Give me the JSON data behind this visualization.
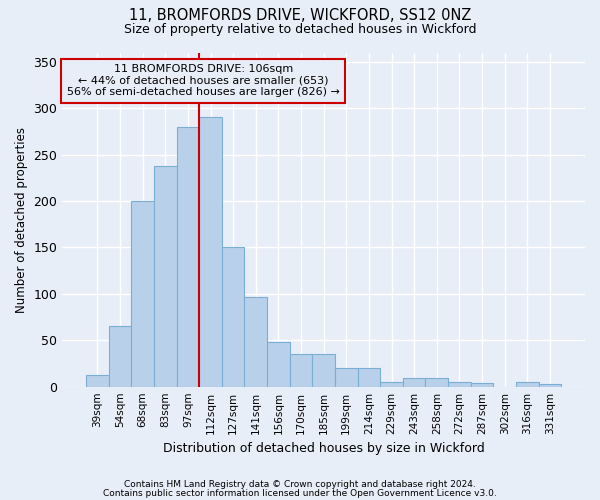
{
  "title1": "11, BROMFORDS DRIVE, WICKFORD, SS12 0NZ",
  "title2": "Size of property relative to detached houses in Wickford",
  "xlabel": "Distribution of detached houses by size in Wickford",
  "ylabel": "Number of detached properties",
  "categories": [
    "39sqm",
    "54sqm",
    "68sqm",
    "83sqm",
    "97sqm",
    "112sqm",
    "127sqm",
    "141sqm",
    "156sqm",
    "170sqm",
    "185sqm",
    "199sqm",
    "214sqm",
    "229sqm",
    "243sqm",
    "258sqm",
    "272sqm",
    "287sqm",
    "302sqm",
    "316sqm",
    "331sqm"
  ],
  "values": [
    13,
    65,
    200,
    238,
    280,
    291,
    150,
    97,
    48,
    35,
    35,
    20,
    20,
    5,
    9,
    9,
    5,
    4,
    0,
    5,
    3
  ],
  "bar_color": "#b8d0ea",
  "bar_edge_color": "#7aaed4",
  "property_label": "11 BROMFORDS DRIVE: 106sqm",
  "annotation_line1": "← 44% of detached houses are smaller (653)",
  "annotation_line2": "56% of semi-detached houses are larger (826) →",
  "vline_color": "#cc0000",
  "vline_x": 5.0,
  "footnote1": "Contains HM Land Registry data © Crown copyright and database right 2024.",
  "footnote2": "Contains public sector information licensed under the Open Government Licence v3.0.",
  "ylim": [
    0,
    360
  ],
  "yticks": [
    0,
    50,
    100,
    150,
    200,
    250,
    300,
    350
  ],
  "bg_color": "#e8eef8",
  "grid_color": "#ffffff"
}
